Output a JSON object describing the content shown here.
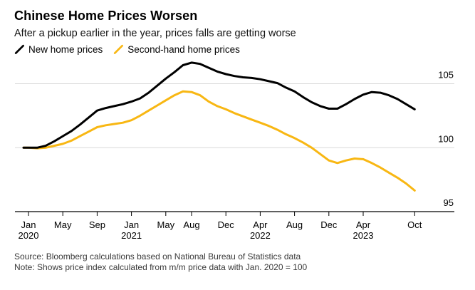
{
  "header": {
    "title": "Chinese Home Prices Worsen",
    "subtitle": "After a pickup earlier in the year, prices falls are getting worse"
  },
  "legend": [
    {
      "label": "New home prices",
      "color": "#000000"
    },
    {
      "label": "Second-hand home prices",
      "color": "#f8b713"
    }
  ],
  "footer": {
    "source": "Source: Bloomberg calculations based on National Bureau of Statistics data",
    "note": "Note: Shows price index calculated from m/m price data with Jan. 2020 = 100"
  },
  "colors": {
    "background": "#ffffff",
    "gridline": "#d9d9d9",
    "axis": "#000000",
    "axis_text": "#000000",
    "footer_text": "#3a3a3a",
    "accent_yellow": "#f8b713",
    "accent_black": "#000000"
  },
  "chart_data": {
    "type": "line",
    "title": "Chinese Home Prices Worsen",
    "subtitle": "After a pickup earlier in the year, prices falls are getting worse",
    "xlabel": "",
    "ylabel": "",
    "x_start": "2020-01",
    "x_end": "2023-10",
    "frequency": "monthly",
    "n_points": 46,
    "ylim": [
      94.5,
      107.5
    ],
    "yticks": [
      95,
      100,
      105
    ],
    "grid": "horizontal",
    "legend_position": "top-left",
    "x_tick_labels": [
      {
        "m": 0,
        "label": "Jan",
        "year": "2020"
      },
      {
        "m": 4,
        "label": "May"
      },
      {
        "m": 8,
        "label": "Sep"
      },
      {
        "m": 12,
        "label": "Jan",
        "year": "2021"
      },
      {
        "m": 16,
        "label": "May"
      },
      {
        "m": 19,
        "label": "Aug"
      },
      {
        "m": 23,
        "label": "Dec"
      },
      {
        "m": 27,
        "label": "Apr",
        "year": "2022"
      },
      {
        "m": 31,
        "label": "Aug"
      },
      {
        "m": 35,
        "label": "Dec"
      },
      {
        "m": 39,
        "label": "Apr",
        "year": "2023"
      },
      {
        "m": 45,
        "label": "Oct"
      }
    ],
    "series": [
      {
        "id": "new-home-prices",
        "name": "New home prices",
        "color": "#000000",
        "values": [
          100.0,
          100.0,
          100.15,
          100.5,
          100.9,
          101.3,
          101.8,
          102.35,
          102.9,
          103.1,
          103.25,
          103.4,
          103.6,
          103.85,
          104.3,
          104.85,
          105.4,
          105.9,
          106.45,
          106.65,
          106.55,
          106.25,
          105.95,
          105.75,
          105.6,
          105.5,
          105.45,
          105.35,
          105.2,
          105.05,
          104.7,
          104.4,
          103.95,
          103.55,
          103.25,
          103.05,
          103.05,
          103.4,
          103.8,
          104.15,
          104.35,
          104.3,
          104.1,
          103.8,
          103.4,
          103.0
        ]
      },
      {
        "id": "second-hand-home-prices",
        "name": "Second-hand home prices",
        "color": "#f8b713",
        "values": [
          100.0,
          99.95,
          100.0,
          100.15,
          100.3,
          100.55,
          100.9,
          101.25,
          101.6,
          101.75,
          101.85,
          101.95,
          102.15,
          102.5,
          102.9,
          103.3,
          103.7,
          104.1,
          104.4,
          104.35,
          104.1,
          103.6,
          103.25,
          103.0,
          102.7,
          102.45,
          102.2,
          101.95,
          101.7,
          101.4,
          101.05,
          100.75,
          100.4,
          100.0,
          99.5,
          99.0,
          98.8,
          99.0,
          99.15,
          99.1,
          98.8,
          98.45,
          98.05,
          97.65,
          97.2,
          96.65
        ]
      }
    ]
  }
}
